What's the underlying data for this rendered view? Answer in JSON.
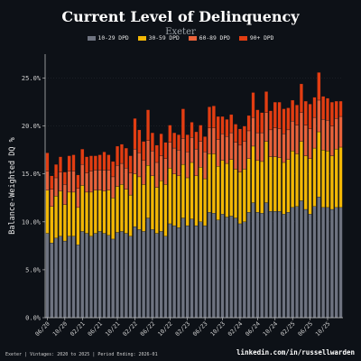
{
  "header": {
    "title": "Current Level of Delinquency",
    "subtitle": "Exeter"
  },
  "footer": {
    "left": "Exeter | Vintages: 2020 to 2025 | Period Ending: 2026-01",
    "right": "linkedin.com/in/russellwarden"
  },
  "colors": {
    "background": "#0d1117",
    "series": [
      "#6e7380",
      "#f2b705",
      "#e8623a",
      "#e23d12"
    ],
    "axis": "#cfcfcf",
    "grid": "#2a2f36"
  },
  "chart_data": {
    "type": "bar",
    "stacked": true,
    "ylabel": "Balance-Weighted DQ %",
    "ylim": [
      0,
      27.5
    ],
    "yticks": [
      "0.0%",
      "5.0%",
      "10.0%",
      "15.0%",
      "20.0%",
      "25.0%"
    ],
    "ytick_values": [
      0,
      5,
      10,
      15,
      20,
      25
    ],
    "legend_placement": "top-center",
    "categories": [
      "06/20",
      "07/20",
      "08/20",
      "09/20",
      "10/20",
      "11/20",
      "12/20",
      "01/21",
      "02/21",
      "03/21",
      "04/21",
      "05/21",
      "06/21",
      "07/21",
      "08/21",
      "09/21",
      "10/21",
      "11/21",
      "12/21",
      "01/22",
      "02/22",
      "03/22",
      "04/22",
      "05/22",
      "06/22",
      "07/22",
      "08/22",
      "09/22",
      "10/22",
      "11/22",
      "12/22",
      "01/23",
      "02/23",
      "03/23",
      "04/23",
      "05/23",
      "06/23",
      "07/23",
      "08/23",
      "09/23",
      "10/23",
      "11/23",
      "12/23",
      "01/24",
      "02/24",
      "03/24",
      "04/24",
      "05/24",
      "06/24",
      "07/24",
      "08/24",
      "09/24",
      "10/24",
      "11/24",
      "12/24",
      "01/25",
      "02/25",
      "03/25",
      "04/25",
      "05/25",
      "06/25",
      "07/25",
      "08/25",
      "09/25",
      "10/25",
      "11/25",
      "12/25",
      "01/26"
    ],
    "xtick_labels": [
      "06/20",
      "10/20",
      "02/21",
      "06/21",
      "10/21",
      "02/22",
      "06/22",
      "10/22",
      "02/23",
      "06/23",
      "10/23",
      "02/24",
      "06/24",
      "10/24",
      "02/25",
      "06/25",
      "10/25"
    ],
    "xtick_indices": [
      0,
      4,
      8,
      12,
      16,
      20,
      24,
      28,
      32,
      36,
      40,
      44,
      48,
      52,
      56,
      60,
      64
    ],
    "series": [
      {
        "name": "10-29 DPD",
        "values": [
          8.8,
          7.8,
          8.3,
          8.5,
          8.0,
          8.5,
          8.5,
          7.6,
          9.0,
          8.8,
          8.5,
          8.8,
          9.0,
          8.8,
          8.6,
          8.2,
          8.9,
          9.0,
          8.8,
          8.5,
          9.5,
          9.2,
          9.0,
          10.4,
          9.2,
          8.8,
          9.0,
          8.5,
          9.8,
          9.6,
          9.4,
          10.4,
          9.6,
          10.3,
          9.6,
          10.0,
          9.6,
          11.0,
          10.9,
          10.2,
          10.8,
          10.5,
          10.6,
          10.4,
          9.8,
          10.0,
          11.0,
          12.0,
          11.0,
          10.9,
          12.0,
          11.1,
          11.1,
          11.1,
          10.8,
          11.0,
          11.5,
          11.6,
          12.2,
          11.3,
          10.8,
          11.6,
          12.6,
          11.5,
          11.5,
          11.3,
          11.5,
          11.5
        ]
      },
      {
        "name": "30-59 DPD",
        "values": [
          4.5,
          3.8,
          4.4,
          4.7,
          3.8,
          4.6,
          4.6,
          3.9,
          4.8,
          4.3,
          4.6,
          4.5,
          4.3,
          4.4,
          4.7,
          4.3,
          4.8,
          4.9,
          4.6,
          4.3,
          5.5,
          5.5,
          4.9,
          5.5,
          5.6,
          4.8,
          5.3,
          5.4,
          5.8,
          5.4,
          5.4,
          5.6,
          5.0,
          5.9,
          5.2,
          5.7,
          4.9,
          6.1,
          6.2,
          5.6,
          5.6,
          5.6,
          5.9,
          5.1,
          5.4,
          5.5,
          5.6,
          5.9,
          5.4,
          5.4,
          6.4,
          5.7,
          5.7,
          5.6,
          5.4,
          5.5,
          5.9,
          5.5,
          6.2,
          5.6,
          5.8,
          6.1,
          6.8,
          6.0,
          5.9,
          5.6,
          6.1,
          6.3
        ]
      },
      {
        "name": "60-89 DPD",
        "values": [
          2.0,
          1.8,
          1.9,
          2.0,
          2.1,
          2.2,
          2.2,
          2.0,
          2.2,
          2.0,
          2.2,
          2.1,
          2.1,
          2.2,
          2.1,
          2.2,
          2.2,
          2.2,
          2.2,
          2.3,
          2.6,
          2.5,
          2.5,
          2.6,
          2.6,
          2.6,
          2.6,
          2.7,
          2.7,
          2.7,
          2.7,
          2.7,
          2.7,
          2.6,
          2.8,
          2.7,
          2.8,
          2.7,
          2.7,
          2.8,
          2.8,
          2.8,
          2.8,
          2.8,
          2.8,
          2.9,
          2.9,
          3.0,
          2.9,
          3.0,
          3.0,
          2.8,
          3.0,
          3.0,
          3.0,
          3.1,
          3.1,
          3.0,
          3.0,
          3.2,
          3.1,
          3.2,
          3.3,
          3.2,
          3.2,
          3.1,
          3.2,
          3.2
        ]
      },
      {
        "name": "90+ DPD",
        "values": [
          1.9,
          1.4,
          1.4,
          1.6,
          1.3,
          1.6,
          1.7,
          1.4,
          1.6,
          1.7,
          1.6,
          1.5,
          1.6,
          1.9,
          1.6,
          1.6,
          2.0,
          2.0,
          2.1,
          1.8,
          3.2,
          2.4,
          2.0,
          3.2,
          1.9,
          1.8,
          2.3,
          1.7,
          1.8,
          1.6,
          1.6,
          3.1,
          1.8,
          1.6,
          1.8,
          1.7,
          1.6,
          2.2,
          2.3,
          2.4,
          1.8,
          1.8,
          1.9,
          1.9,
          1.7,
          1.6,
          1.6,
          2.6,
          2.4,
          2.1,
          2.2,
          2.0,
          2.7,
          2.8,
          2.6,
          2.3,
          2.2,
          2.1,
          3.0,
          2.5,
          2.6,
          2.1,
          2.9,
          2.4,
          2.3,
          2.5,
          1.8,
          1.6
        ]
      }
    ]
  }
}
